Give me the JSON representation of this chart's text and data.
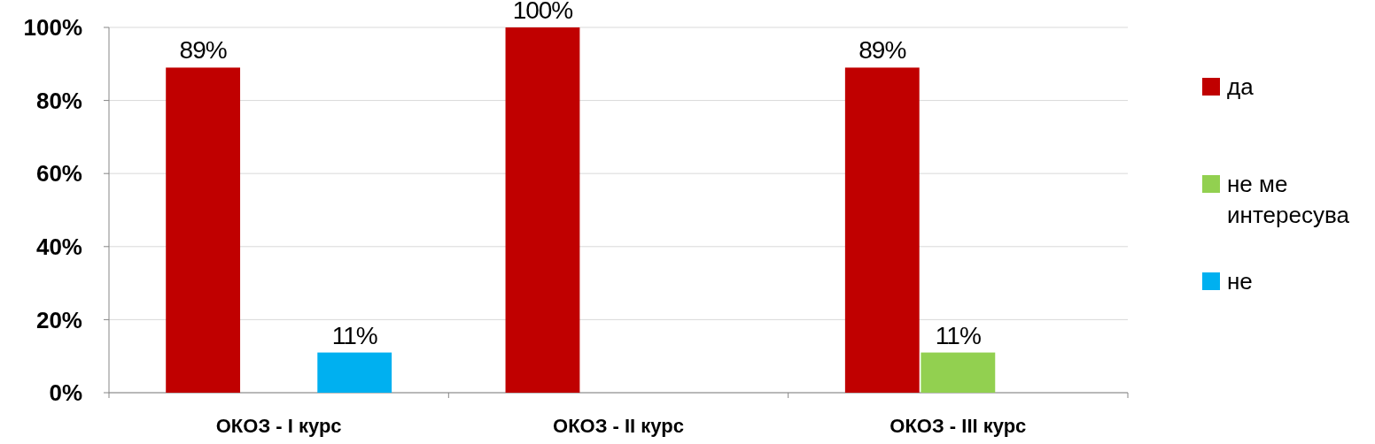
{
  "chart_data": {
    "type": "bar",
    "categories": [
      "ОКОЗ - I курс",
      "ОКОЗ - II курс",
      "ОКОЗ - III курс"
    ],
    "series": [
      {
        "name": "да",
        "color": "#c00000",
        "values": [
          89,
          100,
          89
        ],
        "value_labels": [
          "89%",
          "100%",
          "89%"
        ]
      },
      {
        "name": "не ме интересува",
        "color": "#92d050",
        "values": [
          null,
          null,
          11
        ],
        "value_labels": [
          null,
          null,
          "11%"
        ]
      },
      {
        "name": "не",
        "color": "#00b0f0",
        "values": [
          11,
          null,
          null
        ],
        "value_labels": [
          "11%",
          null,
          null
        ]
      }
    ],
    "ylim": [
      0,
      100
    ],
    "yticks": [
      {
        "value": 0,
        "label": "0%"
      },
      {
        "value": 20,
        "label": "20%"
      },
      {
        "value": 40,
        "label": "40%"
      },
      {
        "value": 60,
        "label": "60%"
      },
      {
        "value": 80,
        "label": "80%"
      },
      {
        "value": 100,
        "label": "100%"
      }
    ],
    "grid": "y",
    "legend": "right"
  }
}
